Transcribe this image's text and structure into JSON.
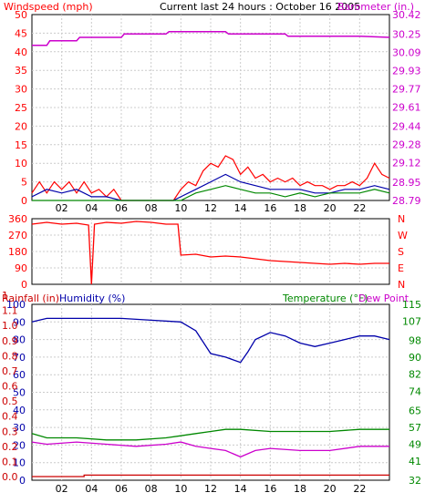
{
  "header": {
    "left_label": "Windspeed (mph)",
    "center_title": "Current last 24 hours : October 16 2005",
    "right_label": "Barometer (in.)"
  },
  "colors": {
    "wind": "#ff0000",
    "gust": "#ff0000",
    "dir": "#ff0000",
    "baro": "#cc00cc",
    "avgwind": "#0000aa",
    "green": "#008800",
    "humidity": "#0000aa",
    "temp": "#008800",
    "dew": "#cc00cc",
    "rain": "#cc0000",
    "grid": "#cccccc"
  },
  "x_ticks": [
    "02",
    "04",
    "06",
    "08",
    "10",
    "12",
    "14",
    "16",
    "18",
    "20",
    "22"
  ],
  "chart_data": [
    {
      "type": "line",
      "name": "wind-barometer",
      "x": "hour",
      "y_left_ticks": [
        "0",
        "5",
        "10",
        "15",
        "20",
        "25",
        "30",
        "35",
        "40",
        "45",
        "50"
      ],
      "y_right_ticks": [
        "28.79",
        "28.95",
        "29.12",
        "29.28",
        "29.44",
        "29.61",
        "29.77",
        "29.93",
        "30.09",
        "30.25",
        "30.42"
      ],
      "ylim_left": [
        0,
        50
      ],
      "ylim_right": [
        28.79,
        30.42
      ],
      "series": [
        {
          "name": "Barometer (in.)",
          "axis": "right",
          "points": [
            [
              0,
              30.15
            ],
            [
              1,
              30.15
            ],
            [
              1.2,
              30.19
            ],
            [
              3,
              30.19
            ],
            [
              3.2,
              30.22
            ],
            [
              6,
              30.22
            ],
            [
              6.2,
              30.25
            ],
            [
              9,
              30.25
            ],
            [
              9.2,
              30.27
            ],
            [
              13,
              30.27
            ],
            [
              13.2,
              30.25
            ],
            [
              17,
              30.25
            ],
            [
              17.2,
              30.23
            ],
            [
              22,
              30.23
            ],
            [
              24,
              30.22
            ]
          ]
        },
        {
          "name": "gust",
          "axis": "left",
          "points": [
            [
              0,
              2
            ],
            [
              0.5,
              5
            ],
            [
              1,
              2
            ],
            [
              1.5,
              5
            ],
            [
              2,
              3
            ],
            [
              2.5,
              5
            ],
            [
              3,
              2
            ],
            [
              3.5,
              5
            ],
            [
              4,
              2
            ],
            [
              4.5,
              3
            ],
            [
              5,
              1
            ],
            [
              5.5,
              3
            ],
            [
              6,
              0
            ],
            [
              9.5,
              0
            ],
            [
              10,
              3
            ],
            [
              10.5,
              5
            ],
            [
              11,
              4
            ],
            [
              11.5,
              8
            ],
            [
              12,
              10
            ],
            [
              12.5,
              9
            ],
            [
              13,
              12
            ],
            [
              13.5,
              11
            ],
            [
              14,
              7
            ],
            [
              14.5,
              9
            ],
            [
              15,
              6
            ],
            [
              15.5,
              7
            ],
            [
              16,
              5
            ],
            [
              16.5,
              6
            ],
            [
              17,
              5
            ],
            [
              17.5,
              6
            ],
            [
              18,
              4
            ],
            [
              18.5,
              5
            ],
            [
              19,
              4
            ],
            [
              19.5,
              4
            ],
            [
              20,
              3
            ],
            [
              20.5,
              4
            ],
            [
              21,
              4
            ],
            [
              21.5,
              5
            ],
            [
              22,
              4
            ],
            [
              22.5,
              6
            ],
            [
              23,
              10
            ],
            [
              23.5,
              7
            ],
            [
              24,
              6
            ]
          ]
        },
        {
          "name": "average wind",
          "axis": "left",
          "points": [
            [
              0,
              1
            ],
            [
              1,
              3
            ],
            [
              2,
              2
            ],
            [
              3,
              3
            ],
            [
              4,
              1
            ],
            [
              5,
              1
            ],
            [
              6,
              0
            ],
            [
              9.5,
              0
            ],
            [
              10,
              1
            ],
            [
              11,
              3
            ],
            [
              12,
              5
            ],
            [
              13,
              7
            ],
            [
              14,
              5
            ],
            [
              15,
              4
            ],
            [
              16,
              3
            ],
            [
              17,
              3
            ],
            [
              18,
              3
            ],
            [
              19,
              2
            ],
            [
              20,
              2
            ],
            [
              21,
              3
            ],
            [
              22,
              3
            ],
            [
              23,
              4
            ],
            [
              24,
              3
            ]
          ]
        },
        {
          "name": "green",
          "axis": "left",
          "points": [
            [
              0,
              0
            ],
            [
              10,
              0
            ],
            [
              10.5,
              1
            ],
            [
              11,
              2
            ],
            [
              12,
              3
            ],
            [
              13,
              4
            ],
            [
              14,
              3
            ],
            [
              15,
              2
            ],
            [
              16,
              2
            ],
            [
              17,
              1
            ],
            [
              18,
              2
            ],
            [
              19,
              1
            ],
            [
              20,
              2
            ],
            [
              21,
              2
            ],
            [
              22,
              2
            ],
            [
              23,
              3
            ],
            [
              24,
              2
            ]
          ]
        }
      ]
    },
    {
      "type": "line",
      "name": "wind-direction",
      "y_left_ticks": [
        "360",
        "270",
        "180",
        "90",
        "0"
      ],
      "y_right_ticks": [
        "N",
        "W",
        "S",
        "E",
        "N"
      ],
      "ylim_left": [
        0,
        360
      ],
      "series": [
        {
          "name": "direction",
          "axis": "left",
          "points": [
            [
              0,
              330
            ],
            [
              1,
              340
            ],
            [
              2,
              330
            ],
            [
              3,
              335
            ],
            [
              3.8,
              325
            ],
            [
              4,
              0
            ],
            [
              4.2,
              330
            ],
            [
              5,
              340
            ],
            [
              6,
              335
            ],
            [
              7,
              345
            ],
            [
              8,
              340
            ],
            [
              9,
              330
            ],
            [
              9.8,
              330
            ],
            [
              10,
              160
            ],
            [
              11,
              165
            ],
            [
              12,
              150
            ],
            [
              13,
              155
            ],
            [
              14,
              150
            ],
            [
              15,
              140
            ],
            [
              16,
              130
            ],
            [
              17,
              125
            ],
            [
              18,
              120
            ],
            [
              19,
              115
            ],
            [
              20,
              110
            ],
            [
              21,
              115
            ],
            [
              22,
              110
            ],
            [
              23,
              115
            ],
            [
              24,
              115
            ]
          ]
        }
      ]
    },
    {
      "type": "line",
      "name": "rain-humidity-temperature",
      "labels": {
        "rainfall": "Rainfall (in)",
        "humidity": "Humidity (%)",
        "temperature": "Temperature (°F)",
        "dewpoint": "Dew Point"
      },
      "y_rain_ticks": [
        "0.0",
        "0.1",
        "0.2",
        "0.3",
        "0.4",
        "0.5",
        "0.6",
        "0.7",
        "0.8",
        "0.9",
        "1.0",
        "1.1",
        "1"
      ],
      "y_hum_ticks": [
        "0",
        "10",
        "20",
        "30",
        "40",
        "50",
        "60",
        "70",
        "80",
        "90",
        "100"
      ],
      "y_temp_ticks": [
        "32",
        "41",
        "49",
        "57",
        "65",
        "74",
        "82",
        "90",
        "98",
        "107",
        "115"
      ],
      "ylim_hum": [
        0,
        100
      ],
      "ylim_temp": [
        32,
        115
      ],
      "series": [
        {
          "name": "Humidity (%)",
          "axis": "humidity",
          "points": [
            [
              0,
              90
            ],
            [
              1,
              92
            ],
            [
              5,
              92
            ],
            [
              6,
              92
            ],
            [
              8,
              91
            ],
            [
              10,
              90
            ],
            [
              11,
              85
            ],
            [
              12,
              72
            ],
            [
              13,
              70
            ],
            [
              14,
              67
            ],
            [
              14.5,
              73
            ],
            [
              15,
              80
            ],
            [
              16,
              84
            ],
            [
              17,
              82
            ],
            [
              18,
              78
            ],
            [
              19,
              76
            ],
            [
              20,
              78
            ],
            [
              21,
              80
            ],
            [
              22,
              82
            ],
            [
              23,
              82
            ],
            [
              24,
              80
            ]
          ]
        },
        {
          "name": "Temperature (°F)",
          "axis": "temp",
          "points": [
            [
              0,
              54
            ],
            [
              1,
              52
            ],
            [
              3,
              52
            ],
            [
              5,
              51
            ],
            [
              7,
              51
            ],
            [
              9,
              52
            ],
            [
              10,
              53
            ],
            [
              11,
              54
            ],
            [
              12,
              55
            ],
            [
              13,
              56
            ],
            [
              14,
              56
            ],
            [
              16,
              55
            ],
            [
              18,
              55
            ],
            [
              20,
              55
            ],
            [
              22,
              56
            ],
            [
              24,
              56
            ]
          ]
        },
        {
          "name": "Dew Point",
          "axis": "temp",
          "points": [
            [
              0,
              50
            ],
            [
              1,
              49
            ],
            [
              3,
              50
            ],
            [
              5,
              49
            ],
            [
              7,
              48
            ],
            [
              9,
              49
            ],
            [
              10,
              50
            ],
            [
              11,
              48
            ],
            [
              12,
              47
            ],
            [
              13,
              46
            ],
            [
              14,
              43
            ],
            [
              15,
              46
            ],
            [
              16,
              47
            ],
            [
              18,
              46
            ],
            [
              20,
              46
            ],
            [
              22,
              48
            ],
            [
              24,
              48
            ]
          ]
        },
        {
          "name": "Rainfall (in)",
          "axis": "rain",
          "points": [
            [
              0,
              0.0
            ],
            [
              3.5,
              0.0
            ],
            [
              3.5,
              0.01
            ],
            [
              24,
              0.01
            ]
          ]
        }
      ]
    }
  ]
}
